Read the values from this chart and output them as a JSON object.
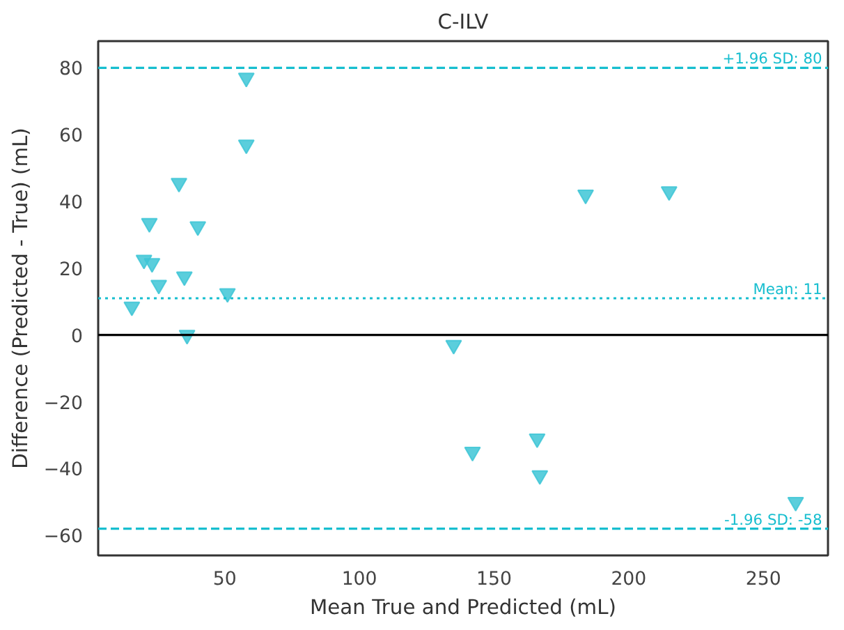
{
  "chart_data": {
    "type": "scatter",
    "title": "C-ILV",
    "xlabel": "Mean True and Predicted (mL)",
    "ylabel": "Difference (Predicted - True) (mL)",
    "x": [
      58,
      58,
      33,
      22,
      40,
      20,
      23,
      25.5,
      35,
      15.5,
      51,
      36,
      135,
      142,
      166,
      167,
      184,
      215,
      262
    ],
    "series": [
      {
        "color": "#3ec6d6",
        "values": [
          77,
          57,
          45.5,
          33.5,
          32.5,
          22.5,
          21.5,
          15,
          17.5,
          8.5,
          12.5,
          0,
          -3,
          -35,
          -31,
          -42,
          42,
          43,
          -50
        ]
      }
    ],
    "marker": "triangle",
    "grid": false,
    "xlim": [
      3,
      274
    ],
    "ylim": [
      -66,
      88
    ],
    "xticks": [
      50,
      100,
      150,
      200,
      250
    ],
    "yticks": [
      -60,
      -40,
      -20,
      0,
      20,
      40,
      60,
      80
    ],
    "ref_lines": [
      {
        "axis": "y",
        "value": 80,
        "label": "+1.96 SD: 80",
        "color": "#17becf",
        "line_style": "dashed"
      },
      {
        "axis": "y",
        "value": 11,
        "label": "Mean: 11",
        "color": "#17becf",
        "line_style": "dotted"
      },
      {
        "axis": "y",
        "value": -58,
        "label": "-1.96 SD: -58",
        "color": "#17becf",
        "line_style": "dashed"
      },
      {
        "axis": "y",
        "value": 0,
        "color": "#000000",
        "line_style": "solid"
      }
    ]
  }
}
